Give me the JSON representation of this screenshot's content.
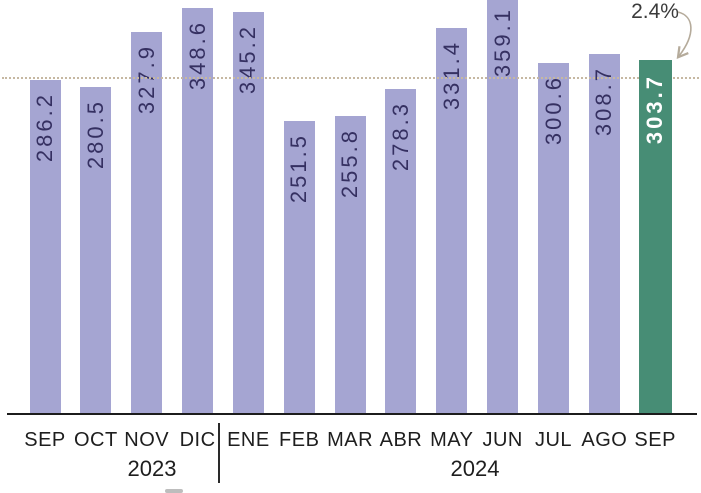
{
  "chart_data": {
    "type": "bar",
    "title": "",
    "xlabel": "",
    "ylabel": "",
    "categories": [
      "SEP",
      "OCT",
      "NOV",
      "DIC",
      "ENE",
      "FEB",
      "MAR",
      "ABR",
      "MAY",
      "JUN",
      "JUL",
      "AGO",
      "SEP"
    ],
    "values": [
      286.2,
      280.5,
      327.9,
      348.6,
      345.2,
      251.5,
      255.8,
      278.3,
      331.4,
      359.1,
      300.6,
      308.7,
      303.7
    ],
    "value_labels": [
      "286.2",
      "280.5",
      "327.9",
      "348.6",
      "345.2",
      "251.5",
      "255.8",
      "278.3",
      "331.4",
      "359.1",
      "300.6",
      "308.7",
      "303.7"
    ],
    "year_groups": [
      {
        "label": "2023",
        "months": [
          "SEP",
          "OCT",
          "NOV",
          "DIC"
        ]
      },
      {
        "label": "2024",
        "months": [
          "ENE",
          "FEB",
          "MAR",
          "ABR",
          "MAY",
          "JUN",
          "JUL",
          "AGO",
          "SEP"
        ]
      }
    ],
    "highlight": {
      "index": 12,
      "category": "SEP",
      "year": "2024",
      "value": 303.7
    },
    "annotation": {
      "text": "2.4%",
      "target": "SEP 2024 bar",
      "arrow": "curved-down-left"
    },
    "reference_line": {
      "style": "dotted",
      "approx_value": 288,
      "color": "#c6b8a2"
    },
    "colors": {
      "bar": "#a5a5d2",
      "highlight_bar": "#478d75",
      "value_label": "#353061",
      "highlight_value_label": "#ffffff",
      "axis": "#1c1c1c",
      "annotation_text": "#3b3b3b",
      "arrow": "#b5ab9b"
    },
    "ylim": [
      0,
      357
    ],
    "grid": false,
    "y_axis_visible": false,
    "legend": "none",
    "value_label_rotation": "vertical-bottom-to-top",
    "top_clipped_bar": "JUN 2024"
  }
}
